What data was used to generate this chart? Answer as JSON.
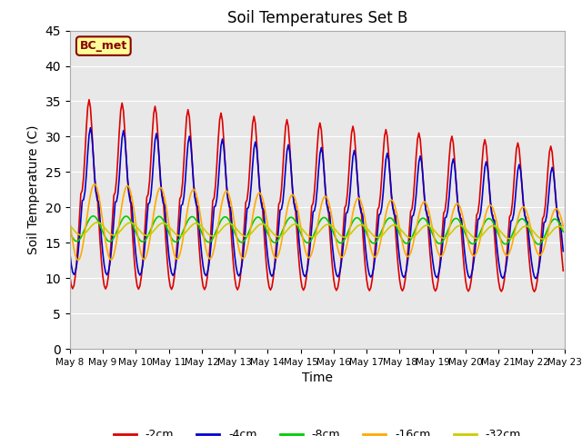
{
  "title": "Soil Temperatures Set B",
  "xlabel": "Time",
  "ylabel": "Soil Temperature (C)",
  "ylim": [
    0,
    45
  ],
  "yticks": [
    0,
    5,
    10,
    15,
    20,
    25,
    30,
    35,
    40,
    45
  ],
  "series": [
    {
      "label": "-2cm",
      "color": "#dd0000"
    },
    {
      "label": "-4cm",
      "color": "#0000cc"
    },
    {
      "label": "-8cm",
      "color": "#00cc00"
    },
    {
      "label": "-16cm",
      "color": "#ffaa00"
    },
    {
      "label": "-32cm",
      "color": "#cccc00"
    }
  ],
  "bc_met_label": "BC_met",
  "bc_met_bg": "#ffff99",
  "bc_met_edge": "#880000",
  "plot_bg": "#e8e8e8",
  "linewidth": 1.2,
  "legend_ncol": 5
}
